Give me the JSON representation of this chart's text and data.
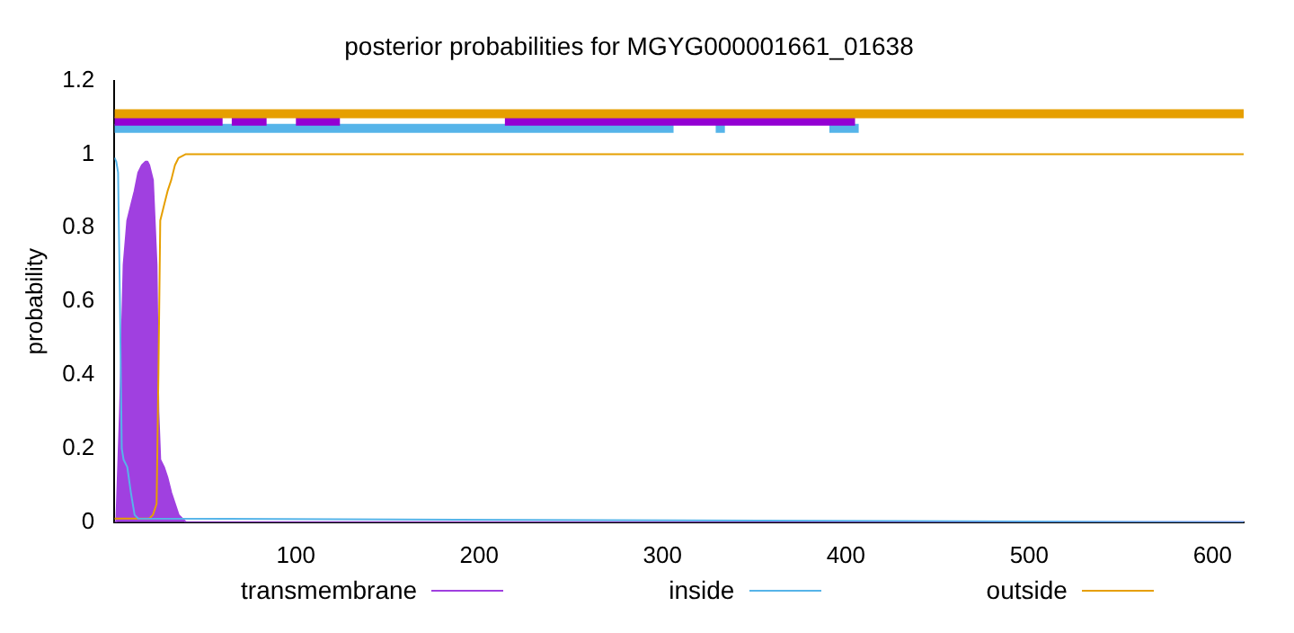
{
  "chart_data": {
    "type": "line",
    "title": "posterior probabilities for MGYG000001661_01638",
    "ylabel": "probability",
    "xlim": [
      1,
      617
    ],
    "xticks": [
      100,
      200,
      300,
      400,
      500,
      600
    ],
    "ylim": [
      0,
      1.2
    ],
    "yticks": [
      0,
      0.2,
      0.4,
      0.6,
      0.8,
      1,
      1.2
    ],
    "grid": false,
    "legend": "bottom",
    "marker": "none",
    "line_style": "solid",
    "series": [
      {
        "name": "transmembrane",
        "type": "area",
        "color": "#a040e0",
        "x": [
          1,
          2,
          4,
          6,
          8,
          10,
          12,
          14,
          16,
          18,
          19,
          20,
          22,
          24,
          25,
          26,
          28,
          30,
          32,
          34,
          36,
          38,
          40,
          617
        ],
        "values": [
          0,
          0,
          0.3,
          0.7,
          0.82,
          0.86,
          0.9,
          0.95,
          0.97,
          0.98,
          0.98,
          0.97,
          0.93,
          0.7,
          0.3,
          0.17,
          0.15,
          0.12,
          0.08,
          0.05,
          0.02,
          0.01,
          0,
          0
        ]
      },
      {
        "name": "inside",
        "color": "#56b4e9",
        "x": [
          1,
          2,
          3,
          4,
          5,
          6,
          8,
          10,
          12,
          14,
          617
        ],
        "values": [
          0.99,
          0.98,
          0.95,
          0.6,
          0.2,
          0.17,
          0.15,
          0.08,
          0.02,
          0.01,
          0
        ]
      },
      {
        "name": "outside",
        "color": "#e69f00",
        "x": [
          1,
          20,
          22,
          24,
          25,
          26,
          28,
          30,
          32,
          34,
          36,
          40,
          44,
          617
        ],
        "values": [
          0.01,
          0.01,
          0.02,
          0.05,
          0.4,
          0.82,
          0.86,
          0.9,
          0.93,
          0.97,
          0.99,
          1,
          1,
          1
        ]
      },
      {
        "color": "#e69f00",
        "x": [
          1,
          617
        ],
        "values": [
          1.11,
          1.11
        ]
      },
      {
        "color": "#9400d3",
        "x": [
          1,
          60
        ],
        "values": [
          1.09,
          1.09
        ]
      },
      {
        "color": "#9400d3",
        "x": [
          65,
          84
        ],
        "values": [
          1.09,
          1.09
        ]
      },
      {
        "color": "#9400d3",
        "x": [
          100,
          124
        ],
        "values": [
          1.09,
          1.09
        ]
      },
      {
        "color": "#9400d3",
        "x": [
          214,
          405
        ],
        "values": [
          1.09,
          1.09
        ]
      },
      {
        "color": "#56b4e9",
        "x": [
          1,
          306
        ],
        "values": [
          1.07,
          1.07
        ]
      },
      {
        "color": "#56b4e9",
        "x": [
          329,
          334
        ],
        "values": [
          1.07,
          1.07
        ]
      },
      {
        "color": "#56b4e9",
        "x": [
          391,
          407
        ],
        "values": [
          1.07,
          1.07
        ]
      }
    ]
  }
}
